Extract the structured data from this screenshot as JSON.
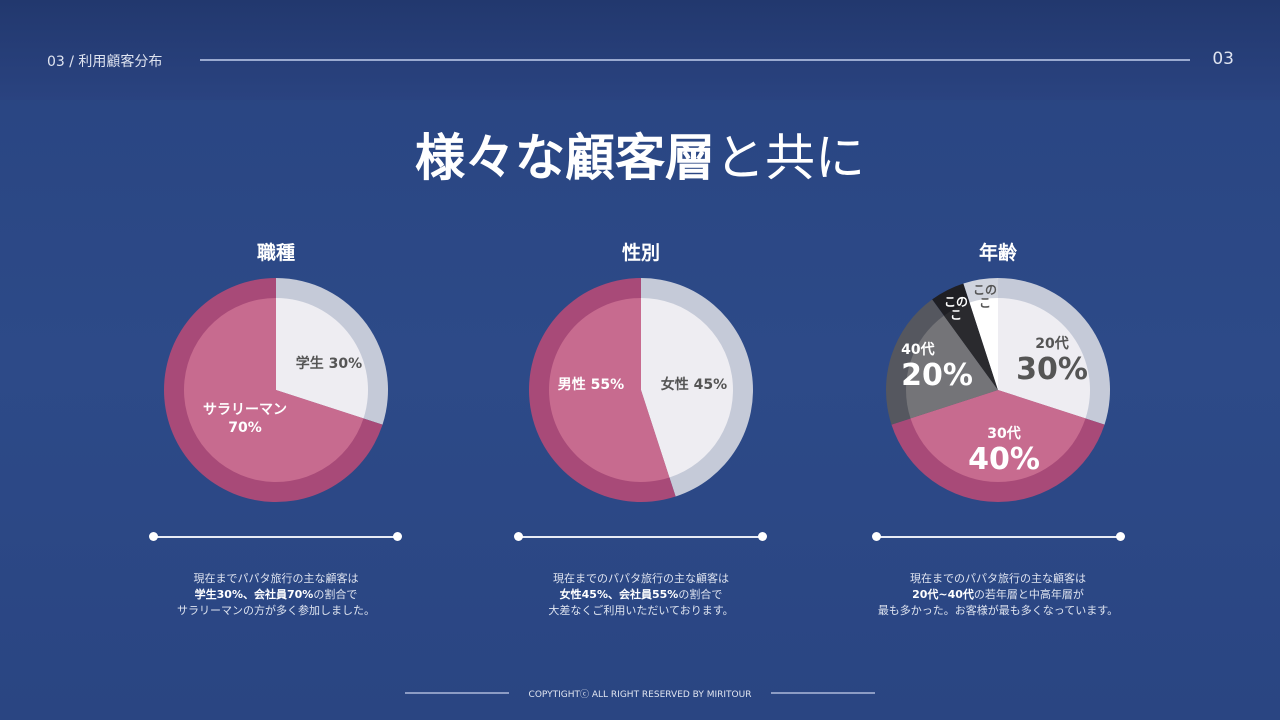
{
  "header": {
    "breadcrumb": "03 / 利用顧客分布",
    "page_number": "03"
  },
  "title": {
    "bold": "様々な顧客層",
    "light": "と共に"
  },
  "chart_data": [
    {
      "type": "pie",
      "title": "職種",
      "slices": [
        {
          "label": "学生",
          "value": 30,
          "text": "学生 30%",
          "color": "#eeedf2"
        },
        {
          "label": "サラリーマン",
          "value": 70,
          "text": "サラリーマン 70%",
          "color": "#c76b8f"
        }
      ]
    },
    {
      "type": "pie",
      "title": "性別",
      "slices": [
        {
          "label": "女性",
          "value": 45,
          "text": "女性 45%",
          "color": "#eeedf2"
        },
        {
          "label": "男性",
          "value": 55,
          "text": "男性 55%",
          "color": "#c76b8f"
        }
      ]
    },
    {
      "type": "pie",
      "title": "年齢",
      "slices": [
        {
          "label": "20代",
          "value": 30,
          "text": "30%",
          "color": "#eeedf2"
        },
        {
          "label": "30代",
          "value": 40,
          "text": "40%",
          "color": "#c76b8f"
        },
        {
          "label": "40代",
          "value": 20,
          "text": "20%",
          "color": "#747478"
        },
        {
          "label": "このこ",
          "value": 5,
          "text": "このこ",
          "color": "#2a2a2e"
        },
        {
          "label": "このこ",
          "value": 5,
          "text": "このこ",
          "color": "#ffffff"
        }
      ]
    }
  ],
  "descriptions": [
    {
      "l1": "現在までパパタ旅行の主な顧客は",
      "l2b": "学生30%、会社員70%",
      "l2": "の割合で",
      "l3": "サラリーマンの方が多く参加しました。"
    },
    {
      "l1": "現在までのパパタ旅行の主な顧客は",
      "l2b": "女性45%、会社員55%",
      "l2": "の割合で",
      "l3": "大差なくご利用いただいております。"
    },
    {
      "l1": "現在までのパパタ旅行の主な顧客は",
      "l2b": "20代~40代",
      "l2": "の若年層と中高年層が",
      "l3": "最も多かった。お客様が最も多くなっています。"
    }
  ],
  "footer": "COPYTIGHTⓒ ALL RIGHT RESERVED BY MIRITOUR"
}
